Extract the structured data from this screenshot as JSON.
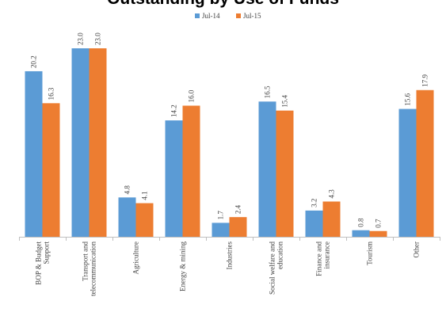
{
  "chart_data": {
    "type": "bar",
    "title": "Outstanding by Use of Funds",
    "categories": [
      [
        "BOP & Budget",
        "Support"
      ],
      [
        "Transport and",
        "telecommunication"
      ],
      [
        "Agriculture"
      ],
      [
        "Energy & mining"
      ],
      [
        "Industries"
      ],
      [
        "Social welfare and",
        "education"
      ],
      [
        "Finance and",
        "insurance"
      ],
      [
        "Tourism"
      ],
      [
        "Other"
      ]
    ],
    "series": [
      {
        "name": "Jul-14",
        "color": "#5B9BD5",
        "values": [
          20.2,
          23.0,
          4.8,
          14.2,
          1.7,
          16.5,
          3.2,
          0.8,
          15.6
        ]
      },
      {
        "name": "Jul-15",
        "color": "#ED7D31",
        "values": [
          16.3,
          23.0,
          4.1,
          16.0,
          2.4,
          15.4,
          4.3,
          0.7,
          17.9
        ]
      }
    ],
    "ylim": [
      0,
      23.0
    ],
    "legend": "top-center",
    "grid": false
  }
}
